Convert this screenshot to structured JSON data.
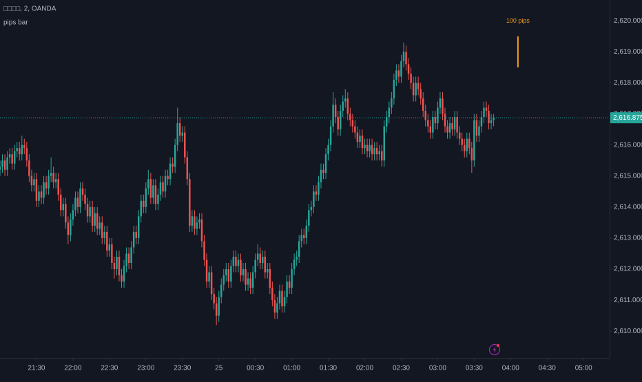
{
  "chart_data": {
    "type": "candlestick",
    "title": "□□□□, 2, OANDA",
    "subtitle": "pips bar",
    "up_color": "#26a69a",
    "down_color": "#ef5350",
    "ylim": [
      2609.14,
      2620.67
    ],
    "yticks": [
      {
        "value": 2610,
        "label": "2,610.000"
      },
      {
        "value": 2611,
        "label": "2,611.000"
      },
      {
        "value": 2612,
        "label": "2,612.000"
      },
      {
        "value": 2613,
        "label": "2,613.000"
      },
      {
        "value": 2614,
        "label": "2,614.000"
      },
      {
        "value": 2615,
        "label": "2,615.000"
      },
      {
        "value": 2616,
        "label": "2,616.000"
      },
      {
        "value": 2617,
        "label": "2,617.000"
      },
      {
        "value": 2618,
        "label": "2,618.000"
      },
      {
        "value": 2619,
        "label": "2,619.000"
      },
      {
        "value": 2620,
        "label": "2,620.000"
      }
    ],
    "xlim": [
      0,
      250.7
    ],
    "xticks": [
      {
        "value": 15,
        "label": "21:30"
      },
      {
        "value": 30,
        "label": "22:00"
      },
      {
        "value": 45,
        "label": "22:30"
      },
      {
        "value": 60,
        "label": "23:00"
      },
      {
        "value": 75,
        "label": "23:30"
      },
      {
        "value": 90,
        "label": "25"
      },
      {
        "value": 105,
        "label": "00:30"
      },
      {
        "value": 120,
        "label": "01:00"
      },
      {
        "value": 135,
        "label": "01:30"
      },
      {
        "value": 150,
        "label": "02:00"
      },
      {
        "value": 165,
        "label": "02:30"
      },
      {
        "value": 180,
        "label": "03:00"
      },
      {
        "value": 195,
        "label": "03:30"
      },
      {
        "value": 210,
        "label": "04:00"
      },
      {
        "value": 225,
        "label": "04:30"
      },
      {
        "value": 240,
        "label": "05:00"
      }
    ],
    "last_price": {
      "value": 2616.875,
      "label": "2,616.875"
    },
    "annotation": {
      "label": "100 pips",
      "from": 2618.5,
      "to": 2619.5,
      "color": "#f59c1a"
    },
    "candles": [
      [
        2615.2,
        2615.5,
        2615.0,
        2615.3
      ],
      [
        2615.3,
        2615.7,
        2615.1,
        2615.5
      ],
      [
        2615.5,
        2615.7,
        2615.0,
        2615.2
      ],
      [
        2615.2,
        2615.8,
        2615.0,
        2615.6
      ],
      [
        2615.6,
        2615.9,
        2615.4,
        2615.7
      ],
      [
        2615.7,
        2615.9,
        2615.2,
        2615.4
      ],
      [
        2615.4,
        2616.0,
        2615.2,
        2615.8
      ],
      [
        2615.8,
        2616.1,
        2615.6,
        2615.9
      ],
      [
        2615.9,
        2616.1,
        2615.5,
        2615.7
      ],
      [
        2615.7,
        2616.3,
        2615.5,
        2616.0
      ],
      [
        2616.0,
        2616.2,
        2615.7,
        2615.9
      ],
      [
        2615.9,
        2616.1,
        2615.3,
        2615.5
      ],
      [
        2615.5,
        2615.7,
        2614.8,
        2615.0
      ],
      [
        2615.0,
        2615.2,
        2614.5,
        2614.7
      ],
      [
        2614.7,
        2615.1,
        2614.5,
        2614.9
      ],
      [
        2614.9,
        2615.1,
        2614.0,
        2614.2
      ],
      [
        2614.2,
        2614.7,
        2614.0,
        2614.5
      ],
      [
        2614.5,
        2614.7,
        2614.1,
        2614.3
      ],
      [
        2614.3,
        2615.0,
        2614.1,
        2614.8
      ],
      [
        2614.8,
        2615.0,
        2614.4,
        2614.6
      ],
      [
        2614.6,
        2615.2,
        2614.4,
        2615.0
      ],
      [
        2615.0,
        2615.6,
        2614.8,
        2615.1
      ],
      [
        2615.1,
        2615.3,
        2614.6,
        2614.8
      ],
      [
        2614.8,
        2615.1,
        2614.6,
        2614.9
      ],
      [
        2614.9,
        2615.1,
        2614.2,
        2614.4
      ],
      [
        2614.4,
        2614.6,
        2613.7,
        2613.9
      ],
      [
        2613.9,
        2614.3,
        2613.7,
        2614.1
      ],
      [
        2614.1,
        2614.3,
        2613.3,
        2613.5
      ],
      [
        2613.5,
        2613.7,
        2612.8,
        2613.1
      ],
      [
        2613.1,
        2613.8,
        2612.9,
        2613.6
      ],
      [
        2613.6,
        2614.1,
        2613.4,
        2613.9
      ],
      [
        2613.9,
        2614.5,
        2613.7,
        2614.3
      ],
      [
        2614.3,
        2614.5,
        2613.8,
        2614.0
      ],
      [
        2614.0,
        2614.8,
        2613.8,
        2614.6
      ],
      [
        2614.6,
        2614.8,
        2614.2,
        2614.4
      ],
      [
        2614.4,
        2614.6,
        2613.9,
        2614.1
      ],
      [
        2614.1,
        2614.3,
        2613.5,
        2613.7
      ],
      [
        2613.7,
        2614.2,
        2613.5,
        2614.0
      ],
      [
        2614.0,
        2614.2,
        2613.2,
        2613.4
      ],
      [
        2613.4,
        2614.0,
        2613.2,
        2613.8
      ],
      [
        2613.8,
        2614.0,
        2613.1,
        2613.3
      ],
      [
        2613.3,
        2613.7,
        2613.1,
        2613.5
      ],
      [
        2613.5,
        2613.7,
        2612.8,
        2613.0
      ],
      [
        2613.0,
        2613.4,
        2612.8,
        2613.2
      ],
      [
        2613.2,
        2613.4,
        2612.4,
        2612.6
      ],
      [
        2612.6,
        2613.0,
        2612.4,
        2612.8
      ],
      [
        2612.8,
        2613.0,
        2612.0,
        2612.2
      ],
      [
        2612.2,
        2612.4,
        2611.7,
        2612.0
      ],
      [
        2612.0,
        2612.6,
        2611.8,
        2612.4
      ],
      [
        2612.4,
        2612.6,
        2611.6,
        2611.8
      ],
      [
        2611.8,
        2612.0,
        2611.4,
        2611.6
      ],
      [
        2611.6,
        2612.3,
        2611.4,
        2612.1
      ],
      [
        2612.1,
        2612.7,
        2611.9,
        2612.5
      ],
      [
        2612.5,
        2612.7,
        2612.0,
        2612.2
      ],
      [
        2612.2,
        2612.9,
        2612.0,
        2612.7
      ],
      [
        2612.7,
        2613.4,
        2612.5,
        2613.2
      ],
      [
        2613.2,
        2613.4,
        2612.8,
        2613.0
      ],
      [
        2613.0,
        2613.9,
        2612.8,
        2613.7
      ],
      [
        2613.7,
        2614.4,
        2613.5,
        2614.2
      ],
      [
        2614.2,
        2614.4,
        2613.8,
        2614.0
      ],
      [
        2614.0,
        2614.8,
        2613.8,
        2614.6
      ],
      [
        2614.6,
        2615.2,
        2614.4,
        2614.9
      ],
      [
        2614.9,
        2615.1,
        2614.1,
        2614.3
      ],
      [
        2614.3,
        2614.9,
        2614.1,
        2614.7
      ],
      [
        2614.7,
        2614.9,
        2613.9,
        2614.1
      ],
      [
        2614.1,
        2614.6,
        2613.9,
        2614.4
      ],
      [
        2614.4,
        2615.0,
        2614.2,
        2614.8
      ],
      [
        2614.8,
        2615.0,
        2614.3,
        2614.5
      ],
      [
        2614.5,
        2615.2,
        2614.3,
        2615.0
      ],
      [
        2615.0,
        2615.2,
        2614.7,
        2614.9
      ],
      [
        2614.9,
        2615.6,
        2614.7,
        2615.4
      ],
      [
        2615.4,
        2615.6,
        2615.1,
        2615.3
      ],
      [
        2615.3,
        2616.2,
        2615.1,
        2616.0
      ],
      [
        2616.0,
        2617.2,
        2615.8,
        2616.7
      ],
      [
        2616.7,
        2616.9,
        2616.1,
        2616.3
      ],
      [
        2616.3,
        2616.6,
        2616.1,
        2616.4
      ],
      [
        2616.4,
        2616.6,
        2615.4,
        2615.6
      ],
      [
        2615.6,
        2615.8,
        2614.7,
        2614.9
      ],
      [
        2614.9,
        2615.1,
        2613.2,
        2613.4
      ],
      [
        2613.4,
        2613.9,
        2613.2,
        2613.7
      ],
      [
        2613.7,
        2613.9,
        2613.1,
        2613.3
      ],
      [
        2613.3,
        2613.7,
        2613.1,
        2613.5
      ],
      [
        2613.5,
        2613.8,
        2613.3,
        2613.6
      ],
      [
        2613.6,
        2613.8,
        2612.7,
        2612.9
      ],
      [
        2612.9,
        2613.1,
        2612.1,
        2612.3
      ],
      [
        2612.3,
        2612.5,
        2611.4,
        2611.6
      ],
      [
        2611.6,
        2612.1,
        2611.4,
        2611.9
      ],
      [
        2611.9,
        2612.1,
        2611.0,
        2611.2
      ],
      [
        2611.2,
        2611.4,
        2610.7,
        2610.9
      ],
      [
        2610.9,
        2611.1,
        2610.2,
        2610.5
      ],
      [
        2610.5,
        2611.3,
        2610.3,
        2611.1
      ],
      [
        2611.1,
        2611.7,
        2610.9,
        2611.5
      ],
      [
        2611.5,
        2612.0,
        2611.3,
        2611.8
      ],
      [
        2611.8,
        2612.2,
        2611.6,
        2612.0
      ],
      [
        2612.0,
        2612.2,
        2611.4,
        2611.6
      ],
      [
        2611.6,
        2612.3,
        2611.4,
        2612.1
      ],
      [
        2612.1,
        2612.6,
        2611.9,
        2612.4
      ],
      [
        2612.4,
        2612.6,
        2611.9,
        2612.1
      ],
      [
        2612.1,
        2612.5,
        2611.9,
        2612.3
      ],
      [
        2612.3,
        2612.5,
        2611.6,
        2611.8
      ],
      [
        2611.8,
        2612.2,
        2611.6,
        2612.0
      ],
      [
        2612.0,
        2612.2,
        2611.3,
        2611.5
      ],
      [
        2611.5,
        2611.9,
        2611.3,
        2611.7
      ],
      [
        2611.7,
        2611.9,
        2611.2,
        2611.4
      ],
      [
        2611.4,
        2612.1,
        2611.2,
        2611.9
      ],
      [
        2611.9,
        2612.5,
        2611.7,
        2612.3
      ],
      [
        2612.3,
        2612.8,
        2612.1,
        2612.5
      ],
      [
        2612.5,
        2612.7,
        2612.0,
        2612.2
      ],
      [
        2612.2,
        2612.6,
        2612.0,
        2612.4
      ],
      [
        2612.4,
        2612.6,
        2611.7,
        2611.9
      ],
      [
        2611.9,
        2612.2,
        2611.7,
        2612.0
      ],
      [
        2612.0,
        2612.2,
        2611.2,
        2611.4
      ],
      [
        2611.4,
        2611.6,
        2610.8,
        2611.0
      ],
      [
        2611.0,
        2611.2,
        2610.4,
        2610.6
      ],
      [
        2610.6,
        2611.1,
        2610.4,
        2610.9
      ],
      [
        2610.9,
        2611.5,
        2610.7,
        2611.3
      ],
      [
        2611.3,
        2611.5,
        2610.6,
        2610.8
      ],
      [
        2610.8,
        2611.3,
        2610.6,
        2611.1
      ],
      [
        2611.1,
        2611.8,
        2610.9,
        2611.6
      ],
      [
        2611.6,
        2611.8,
        2611.2,
        2611.4
      ],
      [
        2611.4,
        2612.2,
        2611.2,
        2612.0
      ],
      [
        2612.0,
        2612.5,
        2611.8,
        2612.3
      ],
      [
        2612.3,
        2612.6,
        2612.1,
        2612.4
      ],
      [
        2612.4,
        2613.1,
        2612.2,
        2612.9
      ],
      [
        2612.9,
        2613.3,
        2612.7,
        2613.1
      ],
      [
        2613.1,
        2613.3,
        2612.8,
        2613.0
      ],
      [
        2613.0,
        2613.6,
        2612.8,
        2613.4
      ],
      [
        2613.4,
        2614.1,
        2613.2,
        2613.9
      ],
      [
        2613.9,
        2614.2,
        2613.7,
        2614.0
      ],
      [
        2614.0,
        2614.7,
        2613.8,
        2614.5
      ],
      [
        2614.5,
        2614.7,
        2614.2,
        2614.4
      ],
      [
        2614.4,
        2615.0,
        2614.2,
        2614.8
      ],
      [
        2614.8,
        2615.4,
        2614.6,
        2615.2
      ],
      [
        2615.2,
        2615.4,
        2614.9,
        2615.1
      ],
      [
        2615.1,
        2615.9,
        2614.9,
        2615.7
      ],
      [
        2615.7,
        2616.2,
        2615.5,
        2616.0
      ],
      [
        2616.0,
        2616.8,
        2615.8,
        2616.6
      ],
      [
        2616.6,
        2617.7,
        2616.4,
        2617.3
      ],
      [
        2617.3,
        2617.5,
        2616.7,
        2616.9
      ],
      [
        2616.9,
        2617.1,
        2616.3,
        2616.5
      ],
      [
        2616.5,
        2617.3,
        2616.3,
        2617.1
      ],
      [
        2617.1,
        2617.6,
        2616.9,
        2617.4
      ],
      [
        2617.4,
        2617.8,
        2617.2,
        2617.5
      ],
      [
        2617.5,
        2617.7,
        2616.8,
        2617.0
      ],
      [
        2617.0,
        2617.2,
        2616.6,
        2616.8
      ],
      [
        2616.8,
        2617.0,
        2616.4,
        2616.6
      ],
      [
        2616.6,
        2616.8,
        2616.2,
        2616.4
      ],
      [
        2616.4,
        2616.6,
        2615.9,
        2616.1
      ],
      [
        2616.1,
        2616.5,
        2615.9,
        2616.3
      ],
      [
        2616.3,
        2616.5,
        2615.7,
        2615.9
      ],
      [
        2615.9,
        2616.2,
        2615.7,
        2616.0
      ],
      [
        2616.0,
        2616.2,
        2615.6,
        2615.8
      ],
      [
        2615.8,
        2616.2,
        2615.6,
        2616.0
      ],
      [
        2616.0,
        2616.2,
        2615.5,
        2615.7
      ],
      [
        2615.7,
        2616.1,
        2615.5,
        2615.9
      ],
      [
        2615.9,
        2616.1,
        2615.5,
        2615.7
      ],
      [
        2615.7,
        2616.0,
        2615.5,
        2615.8
      ],
      [
        2615.8,
        2616.0,
        2615.3,
        2615.5
      ],
      [
        2615.5,
        2616.8,
        2615.3,
        2616.6
      ],
      [
        2616.6,
        2617.1,
        2616.4,
        2616.9
      ],
      [
        2616.9,
        2617.4,
        2616.7,
        2617.2
      ],
      [
        2617.2,
        2617.7,
        2617.0,
        2617.5
      ],
      [
        2617.5,
        2618.3,
        2617.3,
        2618.1
      ],
      [
        2618.1,
        2618.6,
        2617.9,
        2618.4
      ],
      [
        2618.4,
        2618.6,
        2618.0,
        2618.2
      ],
      [
        2618.2,
        2618.9,
        2618.0,
        2618.7
      ],
      [
        2618.7,
        2619.3,
        2618.5,
        2619.0
      ],
      [
        2619.0,
        2619.2,
        2618.4,
        2618.6
      ],
      [
        2618.6,
        2618.8,
        2618.1,
        2618.3
      ],
      [
        2618.3,
        2618.5,
        2617.8,
        2618.0
      ],
      [
        2618.0,
        2618.2,
        2617.4,
        2617.6
      ],
      [
        2617.6,
        2618.2,
        2617.4,
        2618.0
      ],
      [
        2618.0,
        2618.2,
        2617.6,
        2617.8
      ],
      [
        2617.8,
        2618.0,
        2617.3,
        2617.5
      ],
      [
        2617.5,
        2617.7,
        2616.9,
        2617.1
      ],
      [
        2617.1,
        2617.3,
        2616.6,
        2616.8
      ],
      [
        2616.8,
        2617.0,
        2616.4,
        2616.6
      ],
      [
        2616.6,
        2616.8,
        2616.2,
        2616.4
      ],
      [
        2616.4,
        2617.1,
        2616.2,
        2616.9
      ],
      [
        2616.9,
        2617.1,
        2616.5,
        2616.7
      ],
      [
        2616.7,
        2617.4,
        2616.5,
        2617.2
      ],
      [
        2617.2,
        2617.7,
        2617.0,
        2617.5
      ],
      [
        2617.5,
        2617.7,
        2616.8,
        2617.0
      ],
      [
        2617.0,
        2617.2,
        2616.4,
        2616.6
      ],
      [
        2616.6,
        2616.8,
        2616.2,
        2616.4
      ],
      [
        2616.4,
        2616.9,
        2616.2,
        2616.7
      ],
      [
        2616.7,
        2616.9,
        2616.3,
        2616.5
      ],
      [
        2616.5,
        2617.1,
        2616.3,
        2616.9
      ],
      [
        2616.9,
        2617.1,
        2616.2,
        2616.4
      ],
      [
        2616.4,
        2616.6,
        2616.0,
        2616.2
      ],
      [
        2616.2,
        2616.4,
        2615.8,
        2616.0
      ],
      [
        2616.0,
        2616.2,
        2615.6,
        2615.8
      ],
      [
        2615.8,
        2616.4,
        2615.6,
        2616.2
      ],
      [
        2616.2,
        2616.4,
        2615.7,
        2615.9
      ],
      [
        2615.9,
        2616.1,
        2615.1,
        2615.5
      ],
      [
        2615.5,
        2617.0,
        2615.3,
        2616.8
      ],
      [
        2616.8,
        2617.0,
        2616.1,
        2616.3
      ],
      [
        2616.3,
        2616.8,
        2616.1,
        2616.6
      ],
      [
        2616.6,
        2617.1,
        2616.4,
        2616.9
      ],
      [
        2616.9,
        2617.4,
        2616.7,
        2617.2
      ],
      [
        2617.2,
        2617.4,
        2616.9,
        2617.1
      ],
      [
        2617.1,
        2617.3,
        2616.5,
        2616.7
      ],
      [
        2616.7,
        2617.0,
        2616.5,
        2616.8
      ],
      [
        2616.8,
        2617.0,
        2616.6,
        2616.875
      ]
    ]
  }
}
